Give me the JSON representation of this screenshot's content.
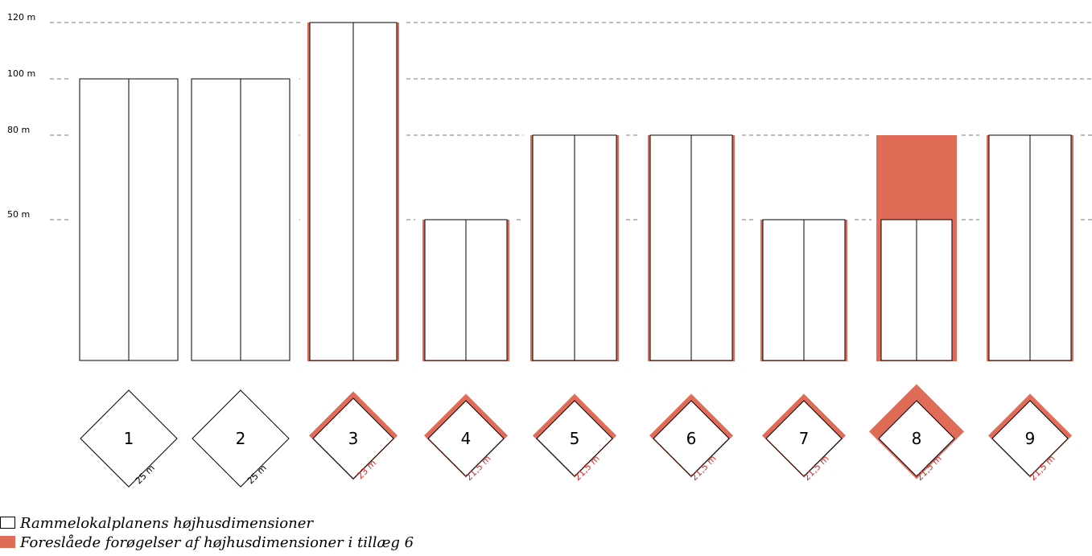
{
  "colors": {
    "proposed": "#e06b57",
    "proposed_text": "#d62b2b",
    "outline": "#000000",
    "gridline": "#777777"
  },
  "y_axis": {
    "labels": [
      "120 m",
      "100 m",
      "80 m",
      "50 m"
    ],
    "values": [
      120,
      100,
      80,
      50
    ]
  },
  "towers": [
    {
      "number": "1",
      "width_label": "25 m",
      "base_height_m": 100,
      "proposed_height_m": 100,
      "proposed_extension": false
    },
    {
      "number": "2",
      "width_label": "25 m",
      "base_height_m": 100,
      "proposed_height_m": 100,
      "proposed_extension": false
    },
    {
      "number": "3",
      "width_label": "23 m",
      "base_height_m": 120,
      "proposed_height_m": 120,
      "proposed_extension": true
    },
    {
      "number": "4",
      "width_label": "21,5 m",
      "base_height_m": 50,
      "proposed_height_m": 50,
      "proposed_extension": true
    },
    {
      "number": "5",
      "width_label": "21,5 m",
      "base_height_m": 80,
      "proposed_height_m": 80,
      "proposed_extension": true
    },
    {
      "number": "6",
      "width_label": "21,5 m",
      "base_height_m": 80,
      "proposed_height_m": 80,
      "proposed_extension": true
    },
    {
      "number": "7",
      "width_label": "21,5 m",
      "base_height_m": 50,
      "proposed_height_m": 50,
      "proposed_extension": true
    },
    {
      "number": "8",
      "width_label": "21,5 m",
      "base_height_m": 50,
      "proposed_height_m": 80,
      "proposed_extension": true
    },
    {
      "number": "9",
      "width_label": "21,5 m",
      "base_height_m": 80,
      "proposed_height_m": 80,
      "proposed_extension": true
    }
  ],
  "legend": {
    "existing": "Rammelokalplanens højhusdimensioner",
    "proposed": "Foreslåede forøgelser af højhusdimensioner i tillæg 6"
  }
}
